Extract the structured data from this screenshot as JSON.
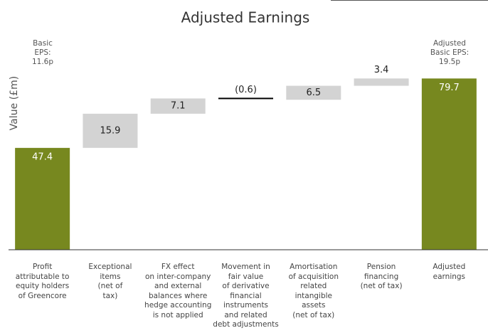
{
  "chart_data": {
    "type": "waterfall",
    "title": "Adjusted Earnings",
    "y_label": "Value (£m)",
    "categories": [
      "Profit\nattributable to\nequity holders\nof Greencore",
      "Exceptional\nitems\n(net of\ntax)",
      "FX effect\non inter-company\nand external\nbalances where\nhedge accounting\nis not applied",
      "Movement in\nfair value\nof derivative\nfinancial\ninstruments\nand related\ndebt adjustments",
      "Amortisation\nof acquisition\nrelated\nintangible\nassets\n(net of tax)",
      "Pension\nfinancing\n(net of tax)",
      "Adjusted\nearnings"
    ],
    "values": [
      47.4,
      15.9,
      7.1,
      -0.6,
      6.5,
      3.4,
      79.7
    ],
    "value_labels": [
      "47.4",
      "15.9",
      "7.1",
      "(0.6)",
      "6.5",
      "3.4",
      "79.7"
    ],
    "is_total": [
      true,
      false,
      false,
      false,
      false,
      false,
      true
    ],
    "total_color": "#77881f",
    "color": "#d3d3d3",
    "negative_color": "#000000",
    "ylim": [
      0,
      100
    ],
    "annotations": [
      "Basic\nEPS:\n11.6p",
      "Adjusted\nBasic EPS:\n19.5p"
    ]
  }
}
